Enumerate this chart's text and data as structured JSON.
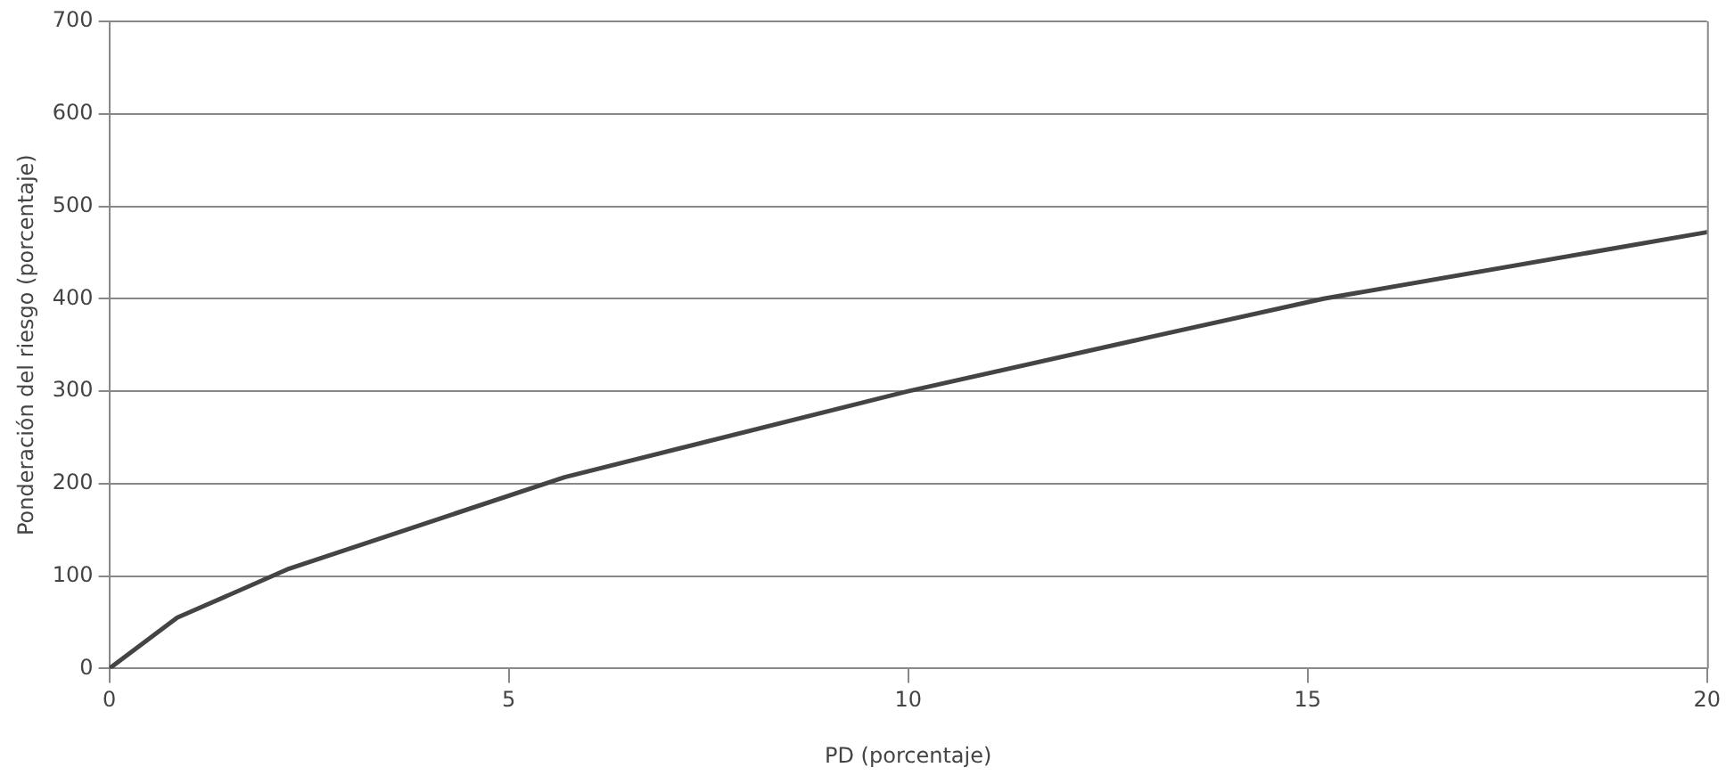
{
  "chart_data": {
    "type": "line",
    "xlabel": "PD (porcentaje)",
    "ylabel": "Ponderación del riesgo (porcentaje)",
    "x": [
      0,
      0.85,
      2.25,
      5.7,
      10,
      13,
      15.2,
      20
    ],
    "series": [
      {
        "color": "#444444",
        "values": [
          0,
          55,
          108,
          207,
          300,
          358,
          400,
          472
        ]
      }
    ],
    "xlim": [
      0,
      20
    ],
    "xticks": [
      0,
      5,
      10,
      15,
      20
    ],
    "ylim": [
      0,
      700
    ],
    "yticks": [
      0,
      100,
      200,
      300,
      400,
      500,
      600,
      700
    ],
    "grid": "y",
    "legend": false,
    "marker": "none",
    "line_style": "solid"
  }
}
